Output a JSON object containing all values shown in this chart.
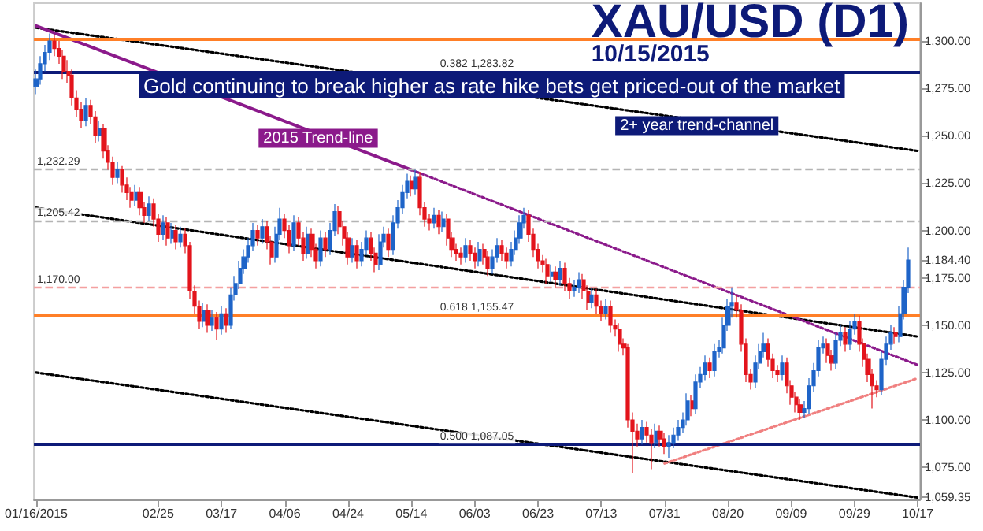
{
  "chart_data": {
    "type": "candlestick",
    "title": "XAU/USD (D1)",
    "subtitle": "10/15/2015",
    "annotations": [
      "Gold continuing to break higher as rate hike bets get priced-out of the market"
    ],
    "categories": [
      "01/16/2015",
      null,
      null,
      null,
      null,
      null,
      null,
      null,
      null,
      null,
      null,
      null,
      null,
      null,
      null,
      null,
      null,
      null,
      null,
      null,
      null,
      null,
      null,
      null,
      null,
      null,
      null,
      "02/25",
      null,
      null,
      null,
      null,
      null,
      null,
      null,
      null,
      null,
      null,
      null,
      null,
      null,
      "03/17",
      null,
      null,
      null,
      null,
      null,
      null,
      null,
      null,
      null,
      null,
      null,
      null,
      null,
      "04/06",
      null,
      null,
      null,
      null,
      null,
      null,
      null,
      null,
      null,
      null,
      null,
      null,
      null,
      "04/24",
      null,
      null,
      null,
      null,
      null,
      null,
      null,
      null,
      null,
      null,
      null,
      null,
      null,
      "05/14",
      null,
      null,
      null,
      null,
      null,
      null,
      null,
      null,
      null,
      null,
      null,
      null,
      null,
      "06/03",
      null,
      null,
      null,
      null,
      null,
      null,
      null,
      null,
      null,
      null,
      null,
      null,
      null,
      "06/23",
      null,
      null,
      null,
      null,
      null,
      null,
      null,
      null,
      null,
      null,
      null,
      null,
      null,
      "07/13",
      null,
      null,
      null,
      null,
      null,
      null,
      null,
      null,
      null,
      null,
      null,
      null,
      null,
      "07/31",
      null,
      null,
      null,
      null,
      null,
      null,
      null,
      null,
      null,
      null,
      null,
      null,
      null,
      "08/20",
      null,
      null,
      null,
      null,
      null,
      null,
      null,
      null,
      null,
      null,
      null,
      null,
      null,
      "09/09",
      null,
      null,
      null,
      null,
      null,
      null,
      null,
      null,
      null,
      null,
      null,
      null,
      null,
      "09/29",
      null,
      null,
      null,
      null,
      null,
      null,
      null,
      null,
      null,
      null,
      null,
      null,
      null,
      "10/17"
    ],
    "ylim": [
      1058,
      1320
    ],
    "yticks": [
      {
        "value": 1075,
        "label": "1,075.00"
      },
      {
        "value": 1100,
        "label": "1,100.00"
      },
      {
        "value": 1125,
        "label": "1,125.00"
      },
      {
        "value": 1150,
        "label": "1,150.00"
      },
      {
        "value": 1175,
        "label": "1,175.00"
      },
      {
        "value": 1184.4,
        "label": "1,184.40"
      },
      {
        "value": 1200,
        "label": "1,200.00"
      },
      {
        "value": 1225,
        "label": "1,225.00"
      },
      {
        "value": 1250,
        "label": "1,250.00"
      },
      {
        "value": 1275,
        "label": "1,275.00"
      },
      {
        "value": 1300,
        "label": "1,300.00"
      },
      {
        "value": 1059.35,
        "label": "1,059.35"
      }
    ],
    "grid": false,
    "marker": "none",
    "ref_lines": [
      {
        "axis": "y",
        "value": 1301,
        "color": "#ff7f27",
        "line_style": "solid"
      },
      {
        "axis": "y",
        "value": 1283.82,
        "label": "0.382 1,283.82",
        "color": "#0d1a78",
        "line_style": "solid"
      },
      {
        "axis": "y",
        "value": 1232.29,
        "label": "1,232.29",
        "color": "#b4b4b4",
        "line_style": "dashed"
      },
      {
        "axis": "y",
        "value": 1205.42,
        "label": "1,205.42",
        "color": "#b4b4b4",
        "line_style": "dashed"
      },
      {
        "axis": "y",
        "value": 1170,
        "label": "1,170.00",
        "color": "#f4a0a0",
        "line_style": "dashed"
      },
      {
        "axis": "y",
        "value": 1155.47,
        "label": "0.618 1,155.47",
        "color": "#ff7f27",
        "line_style": "solid"
      },
      {
        "axis": "y",
        "value": 1087.05,
        "label": "0.500 1,087.05",
        "color": "#0d1a78",
        "line_style": "solid"
      }
    ],
    "series": [
      {
        "type": "candlestick",
        "ohlc": [
          [
            1276,
            1285,
            1272,
            1280
          ],
          [
            1280,
            1292,
            1277,
            1288
          ],
          [
            1288,
            1298,
            1284,
            1294
          ],
          [
            1294,
            1304,
            1290,
            1300
          ],
          [
            1300,
            1303,
            1292,
            1296
          ],
          [
            1296,
            1300,
            1288,
            1292
          ],
          [
            1292,
            1295,
            1280,
            1284
          ],
          [
            1284,
            1290,
            1278,
            1282
          ],
          [
            1282,
            1285,
            1266,
            1270
          ],
          [
            1270,
            1274,
            1260,
            1264
          ],
          [
            1264,
            1268,
            1254,
            1258
          ],
          [
            1258,
            1270,
            1255,
            1266
          ],
          [
            1266,
            1269,
            1256,
            1260
          ],
          [
            1260,
            1263,
            1246,
            1250
          ],
          [
            1250,
            1258,
            1247,
            1254
          ],
          [
            1254,
            1256,
            1238,
            1242
          ],
          [
            1242,
            1245,
            1232,
            1236
          ],
          [
            1236,
            1239,
            1224,
            1228
          ],
          [
            1228,
            1236,
            1225,
            1232
          ],
          [
            1232,
            1234,
            1220,
            1224
          ],
          [
            1224,
            1228,
            1216,
            1220
          ],
          [
            1220,
            1223,
            1212,
            1216
          ],
          [
            1216,
            1224,
            1213,
            1220
          ],
          [
            1220,
            1223,
            1208,
            1212
          ],
          [
            1212,
            1215,
            1204,
            1208
          ],
          [
            1208,
            1218,
            1205,
            1214
          ],
          [
            1214,
            1217,
            1202,
            1206
          ],
          [
            1206,
            1209,
            1194,
            1198
          ],
          [
            1198,
            1208,
            1195,
            1204
          ],
          [
            1204,
            1207,
            1192,
            1196
          ],
          [
            1196,
            1204,
            1193,
            1200
          ],
          [
            1200,
            1203,
            1190,
            1194
          ],
          [
            1194,
            1202,
            1191,
            1198
          ],
          [
            1198,
            1201,
            1188,
            1192
          ],
          [
            1192,
            1194,
            1164,
            1168
          ],
          [
            1168,
            1171,
            1156,
            1160
          ],
          [
            1160,
            1163,
            1148,
            1152
          ],
          [
            1152,
            1162,
            1149,
            1158
          ],
          [
            1158,
            1161,
            1146,
            1150
          ],
          [
            1150,
            1158,
            1147,
            1154
          ],
          [
            1154,
            1157,
            1142,
            1148
          ],
          [
            1148,
            1160,
            1145,
            1156
          ],
          [
            1156,
            1159,
            1146,
            1150
          ],
          [
            1150,
            1170,
            1148,
            1166
          ],
          [
            1166,
            1176,
            1163,
            1172
          ],
          [
            1172,
            1184,
            1169,
            1180
          ],
          [
            1180,
            1190,
            1177,
            1186
          ],
          [
            1186,
            1196,
            1183,
            1192
          ],
          [
            1192,
            1204,
            1189,
            1200
          ],
          [
            1200,
            1203,
            1192,
            1196
          ],
          [
            1196,
            1206,
            1193,
            1202
          ],
          [
            1202,
            1205,
            1190,
            1194
          ],
          [
            1194,
            1197,
            1182,
            1186
          ],
          [
            1186,
            1202,
            1183,
            1198
          ],
          [
            1198,
            1212,
            1195,
            1206
          ],
          [
            1206,
            1209,
            1196,
            1200
          ],
          [
            1200,
            1203,
            1188,
            1192
          ],
          [
            1192,
            1208,
            1189,
            1204
          ],
          [
            1204,
            1207,
            1192,
            1196
          ],
          [
            1196,
            1199,
            1184,
            1188
          ],
          [
            1188,
            1202,
            1185,
            1198
          ],
          [
            1198,
            1201,
            1186,
            1190
          ],
          [
            1190,
            1193,
            1180,
            1184
          ],
          [
            1184,
            1200,
            1181,
            1196
          ],
          [
            1196,
            1199,
            1186,
            1190
          ],
          [
            1190,
            1204,
            1187,
            1200
          ],
          [
            1200,
            1214,
            1197,
            1210
          ],
          [
            1210,
            1213,
            1198,
            1202
          ],
          [
            1202,
            1205,
            1192,
            1196
          ],
          [
            1196,
            1199,
            1182,
            1186
          ],
          [
            1186,
            1196,
            1183,
            1192
          ],
          [
            1192,
            1195,
            1180,
            1184
          ],
          [
            1184,
            1194,
            1181,
            1190
          ],
          [
            1190,
            1200,
            1187,
            1196
          ],
          [
            1196,
            1199,
            1184,
            1188
          ],
          [
            1188,
            1191,
            1178,
            1182
          ],
          [
            1182,
            1198,
            1179,
            1194
          ],
          [
            1194,
            1202,
            1191,
            1198
          ],
          [
            1198,
            1201,
            1186,
            1190
          ],
          [
            1190,
            1208,
            1187,
            1204
          ],
          [
            1204,
            1216,
            1201,
            1212
          ],
          [
            1212,
            1224,
            1209,
            1220
          ],
          [
            1220,
            1230,
            1217,
            1226
          ],
          [
            1226,
            1229,
            1218,
            1222
          ],
          [
            1222,
            1232,
            1219,
            1228
          ],
          [
            1228,
            1231,
            1208,
            1212
          ],
          [
            1212,
            1215,
            1202,
            1206
          ],
          [
            1206,
            1209,
            1200,
            1204
          ],
          [
            1204,
            1212,
            1201,
            1208
          ],
          [
            1208,
            1211,
            1198,
            1202
          ],
          [
            1202,
            1210,
            1199,
            1206
          ],
          [
            1206,
            1209,
            1192,
            1196
          ],
          [
            1196,
            1199,
            1186,
            1190
          ],
          [
            1190,
            1193,
            1184,
            1188
          ],
          [
            1188,
            1191,
            1182,
            1186
          ],
          [
            1186,
            1196,
            1183,
            1192
          ],
          [
            1192,
            1195,
            1184,
            1188
          ],
          [
            1188,
            1191,
            1180,
            1184
          ],
          [
            1184,
            1194,
            1181,
            1190
          ],
          [
            1190,
            1193,
            1182,
            1186
          ],
          [
            1186,
            1189,
            1176,
            1180
          ],
          [
            1180,
            1190,
            1177,
            1186
          ],
          [
            1186,
            1196,
            1183,
            1192
          ],
          [
            1192,
            1195,
            1184,
            1188
          ],
          [
            1188,
            1191,
            1180,
            1184
          ],
          [
            1184,
            1194,
            1181,
            1190
          ],
          [
            1190,
            1200,
            1187,
            1196
          ],
          [
            1196,
            1208,
            1193,
            1204
          ],
          [
            1204,
            1212,
            1201,
            1208
          ],
          [
            1208,
            1211,
            1194,
            1198
          ],
          [
            1198,
            1201,
            1186,
            1190
          ],
          [
            1190,
            1193,
            1180,
            1184
          ],
          [
            1184,
            1187,
            1178,
            1182
          ],
          [
            1182,
            1185,
            1172,
            1176
          ],
          [
            1176,
            1182,
            1173,
            1178
          ],
          [
            1178,
            1181,
            1170,
            1174
          ],
          [
            1174,
            1184,
            1171,
            1180
          ],
          [
            1180,
            1183,
            1168,
            1172
          ],
          [
            1172,
            1175,
            1164,
            1168
          ],
          [
            1168,
            1174,
            1165,
            1170
          ],
          [
            1170,
            1178,
            1167,
            1174
          ],
          [
            1174,
            1177,
            1164,
            1168
          ],
          [
            1168,
            1171,
            1158,
            1162
          ],
          [
            1162,
            1170,
            1159,
            1166
          ],
          [
            1166,
            1169,
            1156,
            1160
          ],
          [
            1160,
            1163,
            1152,
            1156
          ],
          [
            1156,
            1164,
            1153,
            1160
          ],
          [
            1160,
            1163,
            1146,
            1150
          ],
          [
            1150,
            1153,
            1144,
            1148
          ],
          [
            1148,
            1151,
            1136,
            1140
          ],
          [
            1140,
            1143,
            1134,
            1138
          ],
          [
            1138,
            1140,
            1096,
            1100
          ],
          [
            1100,
            1104,
            1072,
            1094
          ],
          [
            1094,
            1098,
            1086,
            1090
          ],
          [
            1090,
            1100,
            1087,
            1096
          ],
          [
            1096,
            1099,
            1088,
            1092
          ],
          [
            1092,
            1095,
            1074,
            1088
          ],
          [
            1088,
            1098,
            1085,
            1094
          ],
          [
            1094,
            1097,
            1086,
            1090
          ],
          [
            1090,
            1093,
            1082,
            1086
          ],
          [
            1086,
            1092,
            1080,
            1088
          ],
          [
            1088,
            1096,
            1085,
            1092
          ],
          [
            1092,
            1100,
            1089,
            1096
          ],
          [
            1096,
            1104,
            1093,
            1100
          ],
          [
            1100,
            1114,
            1097,
            1110
          ],
          [
            1110,
            1113,
            1102,
            1106
          ],
          [
            1106,
            1124,
            1103,
            1120
          ],
          [
            1120,
            1128,
            1117,
            1124
          ],
          [
            1124,
            1134,
            1121,
            1130
          ],
          [
            1130,
            1133,
            1122,
            1126
          ],
          [
            1126,
            1140,
            1123,
            1136
          ],
          [
            1136,
            1142,
            1133,
            1138
          ],
          [
            1138,
            1154,
            1135,
            1150
          ],
          [
            1150,
            1164,
            1147,
            1160
          ],
          [
            1160,
            1170,
            1154,
            1162
          ],
          [
            1162,
            1166,
            1154,
            1158
          ],
          [
            1158,
            1161,
            1136,
            1140
          ],
          [
            1140,
            1143,
            1120,
            1124
          ],
          [
            1124,
            1127,
            1116,
            1120
          ],
          [
            1120,
            1134,
            1117,
            1130
          ],
          [
            1130,
            1140,
            1127,
            1136
          ],
          [
            1136,
            1146,
            1133,
            1140
          ],
          [
            1140,
            1143,
            1128,
            1132
          ],
          [
            1132,
            1135,
            1122,
            1126
          ],
          [
            1126,
            1129,
            1120,
            1124
          ],
          [
            1124,
            1134,
            1121,
            1130
          ],
          [
            1130,
            1133,
            1114,
            1118
          ],
          [
            1118,
            1121,
            1108,
            1112
          ],
          [
            1112,
            1115,
            1104,
            1108
          ],
          [
            1108,
            1111,
            1100,
            1104
          ],
          [
            1104,
            1110,
            1101,
            1106
          ],
          [
            1106,
            1122,
            1103,
            1118
          ],
          [
            1118,
            1130,
            1115,
            1126
          ],
          [
            1126,
            1142,
            1123,
            1138
          ],
          [
            1138,
            1144,
            1135,
            1140
          ],
          [
            1140,
            1143,
            1130,
            1134
          ],
          [
            1134,
            1137,
            1126,
            1130
          ],
          [
            1130,
            1146,
            1127,
            1142
          ],
          [
            1142,
            1150,
            1139,
            1146
          ],
          [
            1146,
            1149,
            1136,
            1140
          ],
          [
            1140,
            1152,
            1137,
            1148
          ],
          [
            1148,
            1156,
            1145,
            1152
          ],
          [
            1152,
            1155,
            1136,
            1140
          ],
          [
            1140,
            1143,
            1128,
            1132
          ],
          [
            1132,
            1135,
            1120,
            1124
          ],
          [
            1124,
            1127,
            1106,
            1118
          ],
          [
            1118,
            1121,
            1112,
            1116
          ],
          [
            1116,
            1136,
            1113,
            1132
          ],
          [
            1132,
            1144,
            1129,
            1140
          ],
          [
            1140,
            1150,
            1137,
            1146
          ],
          [
            1146,
            1149,
            1140,
            1144
          ],
          [
            1144,
            1160,
            1141,
            1156
          ],
          [
            1156,
            1174,
            1153,
            1170
          ],
          [
            1170,
            1191,
            1167,
            1184.4
          ],
          null,
          null
        ]
      },
      {
        "type": "line",
        "name": "2+ year trend-channel",
        "color": "#000000",
        "line_style": "dotted",
        "x": [
          "01/16/2015",
          "10/17"
        ],
        "values": [
          1307,
          1242
        ]
      },
      {
        "type": "line",
        "color": "#000000",
        "line_style": "dotted",
        "x": [
          "01/16/2015",
          "10/17"
        ],
        "values": [
          1212,
          1144
        ]
      },
      {
        "type": "line",
        "color": "#000000",
        "line_style": "dotted",
        "x": [
          "01/16/2015",
          "10/17"
        ],
        "values": [
          1125,
          1059
        ]
      },
      {
        "type": "line",
        "name": "2015 Trend-line",
        "color": "#8b1a8b",
        "line_style": "solid",
        "x": [
          "01/16/2015",
          "05/14"
        ],
        "values": [
          1308,
          1232
        ]
      },
      {
        "type": "line",
        "color": "#8b1a8b",
        "line_style": "dotted",
        "x": [
          "05/14",
          "10/17"
        ],
        "values": [
          1232,
          1129
        ]
      },
      {
        "type": "line",
        "color": "#f08080",
        "line_style": "dotted",
        "x": [
          "07/31",
          "10/17"
        ],
        "values": [
          1077,
          1122
        ]
      }
    ]
  }
}
